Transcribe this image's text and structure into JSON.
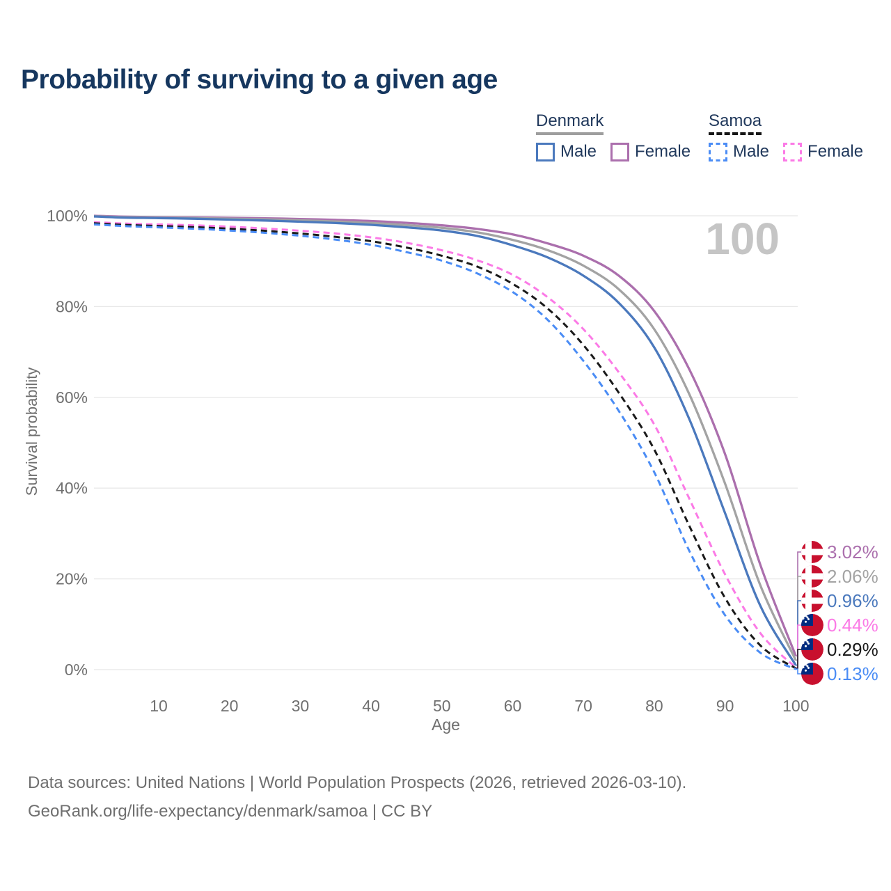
{
  "title": "Probability of surviving to a given age",
  "watermark": "100",
  "legend": {
    "groups": [
      {
        "country": "Denmark",
        "line_style": "solid",
        "underline_color": "#9e9e9e",
        "items": [
          {
            "label": "Male",
            "color": "#4b79bd"
          },
          {
            "label": "Female",
            "color": "#ab6fad"
          }
        ]
      },
      {
        "country": "Samoa",
        "line_style": "dashed",
        "underline_color": "#161616",
        "items": [
          {
            "label": "Male",
            "color": "#4a8cf5"
          },
          {
            "label": "Female",
            "color": "#fb7ae6"
          }
        ]
      }
    ]
  },
  "chart_data": {
    "type": "line",
    "title": "Probability of surviving to a given age",
    "xlabel": "Age",
    "ylabel": "Survival probability",
    "xlim": [
      0,
      100
    ],
    "ylim": [
      0,
      100
    ],
    "grid": "horizontal",
    "x_ticks": [
      10,
      20,
      30,
      40,
      50,
      60,
      70,
      80,
      90,
      100
    ],
    "y_gridline_values": [
      0,
      20,
      40,
      60,
      80,
      100
    ],
    "y_tick_labels": [
      "0%",
      "20%",
      "40%",
      "60%",
      "80%",
      "100%"
    ],
    "hover_x_value": "100",
    "x": [
      0,
      5,
      10,
      15,
      20,
      25,
      30,
      35,
      40,
      45,
      50,
      55,
      60,
      65,
      70,
      75,
      80,
      85,
      90,
      95,
      100
    ],
    "series": [
      {
        "name": "Denmark Female",
        "country": "Denmark",
        "sex": "Female",
        "line": "solid",
        "color": "#ab6fad",
        "flag": "denmark",
        "end_label": "3.02%",
        "end_value": 3.02,
        "values": [
          100,
          99.8,
          99.7,
          99.65,
          99.55,
          99.45,
          99.3,
          99.1,
          98.85,
          98.45,
          97.9,
          97.1,
          95.9,
          93.9,
          91.2,
          86.8,
          79.0,
          66.0,
          47.5,
          23.0,
          3.02
        ]
      },
      {
        "name": "Denmark Both sexes",
        "country": "Denmark",
        "sex": "Both sexes",
        "line": "solid",
        "color": "#a3a3a3",
        "flag": "denmark",
        "end_label": "2.06%",
        "end_value": 2.06,
        "values": [
          99.9,
          99.7,
          99.6,
          99.5,
          99.35,
          99.2,
          99.0,
          98.75,
          98.4,
          97.95,
          97.35,
          96.35,
          94.7,
          92.4,
          89.0,
          83.8,
          75.0,
          60.5,
          41.0,
          18.5,
          2.06
        ]
      },
      {
        "name": "Denmark Male",
        "country": "Denmark",
        "sex": "Male",
        "line": "solid",
        "color": "#4b79bd",
        "flag": "denmark",
        "end_label": "0.96%",
        "end_value": 0.96,
        "values": [
          99.85,
          99.6,
          99.5,
          99.35,
          99.15,
          98.95,
          98.7,
          98.4,
          98.0,
          97.45,
          96.75,
          95.55,
          93.5,
          90.8,
          86.8,
          80.8,
          71.0,
          55.0,
          34.5,
          14.0,
          0.96
        ]
      },
      {
        "name": "Samoa Female",
        "country": "Samoa",
        "sex": "Female",
        "line": "dashed",
        "color": "#fb7ae6",
        "flag": "samoa",
        "end_label": "0.44%",
        "end_value": 0.44,
        "values": [
          98.6,
          98.3,
          98.1,
          97.9,
          97.6,
          97.2,
          96.7,
          96.1,
          95.25,
          94.05,
          92.4,
          90.2,
          87.0,
          82.0,
          75.0,
          65.5,
          54.0,
          37.5,
          21.0,
          8.0,
          0.44
        ]
      },
      {
        "name": "Samoa Both sexes",
        "country": "Samoa",
        "sex": "Both sexes",
        "line": "dashed",
        "color": "#1a1a1a",
        "flag": "samoa",
        "end_label": "0.29%",
        "end_value": 0.29,
        "values": [
          98.35,
          98.0,
          97.75,
          97.5,
          97.15,
          96.7,
          96.1,
          95.35,
          94.4,
          93.0,
          91.2,
          88.8,
          85.0,
          79.5,
          71.5,
          61.0,
          48.5,
          31.5,
          15.8,
          5.3,
          0.29
        ]
      },
      {
        "name": "Samoa Male",
        "country": "Samoa",
        "sex": "Male",
        "line": "dashed",
        "color": "#4a8cf5",
        "flag": "samoa",
        "end_label": "0.13%",
        "end_value": 0.13,
        "values": [
          98.1,
          97.75,
          97.45,
          97.15,
          96.75,
          96.25,
          95.6,
          94.75,
          93.6,
          92.0,
          90.1,
          87.3,
          83.2,
          77.0,
          68.0,
          57.0,
          43.5,
          26.0,
          12.0,
          3.7,
          0.13
        ]
      }
    ],
    "flag_colors": {
      "red": "#c8102e",
      "white": "#ffffff",
      "samoa_blue": "#002b7f"
    }
  },
  "footer": {
    "line1": "Data sources: United Nations | World Population Prospects (2026, retrieved 2026-03-10).",
    "line2": "GeoRank.org/life-expectancy/denmark/samoa | CC BY"
  }
}
